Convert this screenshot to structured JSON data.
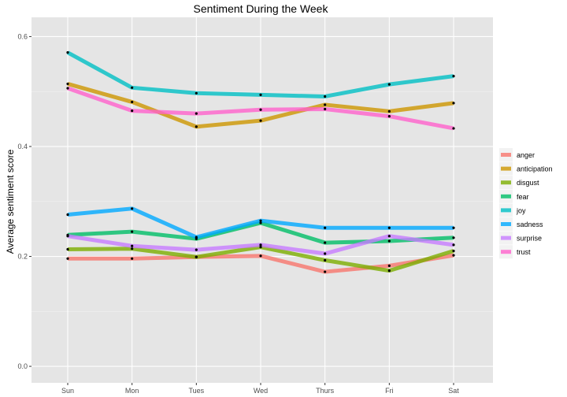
{
  "chart_data": {
    "type": "line",
    "title": "Sentiment During the Week",
    "xlabel": "",
    "ylabel": "Average sentiment score",
    "categories": [
      "Sun",
      "Mon",
      "Tues",
      "Wed",
      "Thurs",
      "Fri",
      "Sat"
    ],
    "ylim": [
      -0.03,
      0.635
    ],
    "yticks": [
      0.0,
      0.2,
      0.4,
      0.6
    ],
    "yticklabels": [
      "0.0",
      "0.2",
      "0.4",
      "0.6"
    ],
    "grid": true,
    "legend_position": "right",
    "series": [
      {
        "name": "anger",
        "color": "#F8766D",
        "values": [
          0.196,
          0.196,
          0.199,
          0.201,
          0.172,
          0.183,
          0.202
        ]
      },
      {
        "name": "anticipation",
        "color": "#CD9600",
        "values": [
          0.514,
          0.481,
          0.436,
          0.447,
          0.476,
          0.464,
          0.479
        ]
      },
      {
        "name": "disgust",
        "color": "#7CAE00",
        "values": [
          0.213,
          0.214,
          0.199,
          0.217,
          0.193,
          0.174,
          0.21
        ]
      },
      {
        "name": "fear",
        "color": "#00BE67",
        "values": [
          0.239,
          0.245,
          0.232,
          0.261,
          0.225,
          0.228,
          0.234
        ]
      },
      {
        "name": "joy",
        "color": "#00BFC4",
        "values": [
          0.571,
          0.507,
          0.497,
          0.494,
          0.491,
          0.513,
          0.528
        ]
      },
      {
        "name": "sadness",
        "color": "#00A9FF",
        "values": [
          0.276,
          0.287,
          0.235,
          0.265,
          0.252,
          0.252,
          0.252
        ]
      },
      {
        "name": "surprise",
        "color": "#C77CFF",
        "values": [
          0.237,
          0.219,
          0.212,
          0.221,
          0.205,
          0.237,
          0.221
        ]
      },
      {
        "name": "trust",
        "color": "#FF61CC",
        "values": [
          0.506,
          0.465,
          0.46,
          0.467,
          0.468,
          0.455,
          0.433
        ]
      }
    ]
  }
}
